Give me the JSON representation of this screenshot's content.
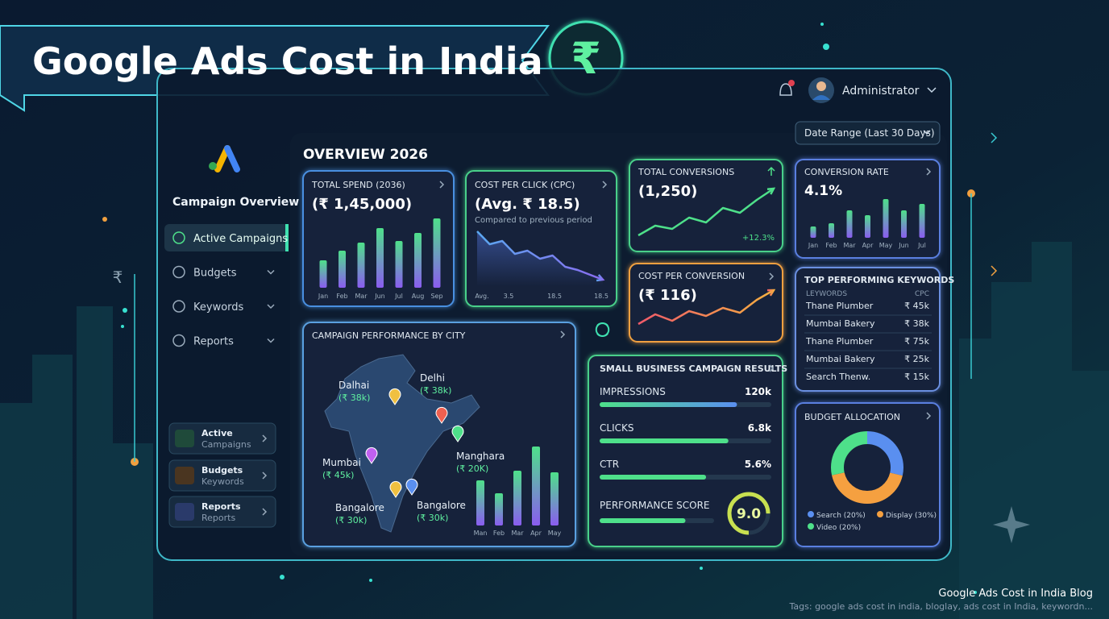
{
  "banner": {
    "title": "Google Ads Cost in India",
    "symbol": "₹",
    "side_symbol": "₹"
  },
  "header": {
    "user": "Administrator",
    "date_range": "Date Range (Last 30 Days)"
  },
  "sidebar": {
    "title": "Campaign Overview",
    "menu": [
      "Active Campaigns",
      "Budgets",
      "Keywords",
      "Reports"
    ],
    "shortcuts": [
      {
        "title": "Active",
        "subtitle": "Campaigns"
      },
      {
        "title": "Budgets",
        "subtitle": "Keywords"
      },
      {
        "title": "Reports",
        "subtitle": "Reports"
      }
    ]
  },
  "overview": {
    "title": "OVERVIEW 2026"
  },
  "total_spend": {
    "title": "TOTAL SPEND (2036)",
    "value": "(₹ 1,45,000)",
    "categories": [
      "Jan",
      "Feb",
      "Mar",
      "Jun",
      "Jul",
      "Aug",
      "Sep"
    ],
    "values": [
      34,
      46,
      56,
      74,
      58,
      68,
      86
    ]
  },
  "cost_per_click": {
    "title": "COST PER CLICK (CPC)",
    "value": "(Avg. ₹ 18.5)",
    "subtitle": "Compared to previous period",
    "x_labels": [
      "Avg.",
      "3.5",
      "18.5",
      "18.5"
    ],
    "values": [
      68,
      52,
      56,
      40,
      44,
      34,
      38,
      24,
      20,
      14,
      8
    ]
  },
  "total_conversions": {
    "title": "TOTAL CONVERSIONS",
    "value": "(1,250)",
    "change": "+12.3%",
    "values": [
      8,
      20,
      16,
      30,
      24,
      42,
      36,
      52,
      66
    ]
  },
  "cost_per_conversion": {
    "title": "COST PER CONVERSION",
    "value": "(₹ 116)",
    "values": [
      10,
      22,
      14,
      26,
      20,
      30,
      24,
      40,
      52
    ]
  },
  "conversion_rate": {
    "title": "CONVERSION RATE",
    "value": "4.1%",
    "categories": [
      "Jan",
      "Feb",
      "Mar",
      "Apr",
      "May",
      "Jun",
      "Jul"
    ],
    "values": [
      14,
      18,
      34,
      28,
      48,
      34,
      42
    ]
  },
  "top_keywords": {
    "title": "TOP PERFORMING KEYWORDS",
    "headers": [
      "LEYWORDS",
      "CPC"
    ],
    "rows": [
      [
        "Thane Plumber",
        "₹ 45k"
      ],
      [
        "Mumbai Bakery",
        "₹ 38k"
      ],
      [
        "Thane Plumber",
        "₹ 75k"
      ],
      [
        "Mumbai Bakery",
        "₹ 25k"
      ],
      [
        "Search Thenw.",
        "₹ 15k"
      ]
    ]
  },
  "city_performance": {
    "title": "CAMPAIGN PERFORMANCE BY CITY",
    "cities": [
      {
        "name": "Dalhai",
        "value": "(₹ 38k)"
      },
      {
        "name": "Delhi",
        "value": "(₹ 38k)"
      },
      {
        "name": "Mumbai",
        "value": "(₹ 45k)"
      },
      {
        "name": "Manghara",
        "value": "(₹ 20K)"
      },
      {
        "name": "Bangalore",
        "value": "(₹ 30k)"
      },
      {
        "name": "Bangalore",
        "value": "(₹ 30k)"
      }
    ],
    "categories": [
      "Man",
      "Feb",
      "Mar",
      "Apr",
      "May"
    ],
    "values": [
      56,
      40,
      68,
      98,
      66
    ]
  },
  "small_business": {
    "title": "SMALL BUSINESS CAMPAIGN RESULTS",
    "metrics": [
      {
        "name": "IMPRESSIONS",
        "value": "120k",
        "progress": 80
      },
      {
        "name": "CLICKS",
        "value": "6.8k",
        "progress": 75
      },
      {
        "name": "CTR",
        "value": "5.6%",
        "progress": 62
      }
    ],
    "score_name": "PERFORMANCE SCORE",
    "score": "9.0",
    "score_progress": 75
  },
  "budget_allocation": {
    "title": "BUDGET ALLOCATION",
    "legend": [
      "Search (20%)",
      "Display (30%)",
      "Video (20%)"
    ],
    "values": [
      20,
      30,
      20
    ]
  },
  "footer": {
    "title": "Google Ads Cost in India Blog",
    "tags": "Tags: google ads cost in india, bloglay, ads cost in India, keywordn..."
  }
}
